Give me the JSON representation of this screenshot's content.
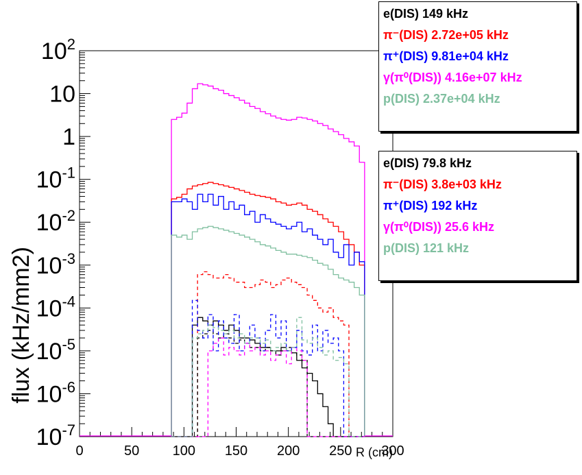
{
  "chart_data": {
    "type": "line",
    "title": "",
    "xlabel": "R (cm)",
    "ylabel": "flux (kHz/mm2)",
    "xlim": [
      0,
      300
    ],
    "ylim": [
      1e-07,
      100
    ],
    "log_y": true,
    "grid": false,
    "x_ticks": [
      "0",
      "50",
      "100",
      "150",
      "200",
      "250",
      "300"
    ],
    "y_ticks": [
      {
        "base": "10",
        "exp": "2"
      },
      {
        "base": "10",
        "exp": ""
      },
      {
        "base": "1",
        "exp": ""
      },
      {
        "base": "10",
        "exp": "-1"
      },
      {
        "base": "10",
        "exp": "-2"
      },
      {
        "base": "10",
        "exp": "-3"
      },
      {
        "base": "10",
        "exp": "-4"
      },
      {
        "base": "10",
        "exp": "-5"
      },
      {
        "base": "10",
        "exp": "-6"
      },
      {
        "base": "10",
        "exp": "-7"
      }
    ],
    "bin_edges": [
      88,
      93,
      98,
      103,
      108,
      113,
      118,
      123,
      128,
      133,
      138,
      143,
      148,
      153,
      158,
      163,
      168,
      173,
      178,
      183,
      188,
      193,
      198,
      203,
      208,
      213,
      218,
      223,
      228,
      233,
      238,
      243,
      248,
      253,
      258,
      263,
      268,
      273
    ],
    "series": [
      {
        "name": "γ(π⁰(DIS))",
        "color": "#ff00ff",
        "style": "solid",
        "values": [
          2.5,
          2.8,
          3.5,
          6.0,
          13.0,
          17.0,
          16.0,
          15.0,
          13.0,
          12.0,
          10.0,
          9.0,
          8.0,
          7.0,
          6.0,
          5.0,
          4.5,
          3.8,
          3.4,
          3.0,
          2.7,
          2.5,
          2.4,
          2.5,
          2.8,
          2.7,
          2.5,
          2.3,
          2.0,
          1.8,
          1.5,
          1.3,
          1.1,
          0.9,
          0.75,
          0.6,
          0.25
        ]
      },
      {
        "name": "π⁻(DIS)",
        "color": "#ff0000",
        "style": "solid",
        "values": [
          0.035,
          0.038,
          0.045,
          0.06,
          0.07,
          0.075,
          0.08,
          0.085,
          0.08,
          0.075,
          0.07,
          0.065,
          0.06,
          0.055,
          0.05,
          0.045,
          0.042,
          0.04,
          0.038,
          0.035,
          0.03,
          0.028,
          0.025,
          0.026,
          0.028,
          0.025,
          0.02,
          0.018,
          0.015,
          0.012,
          0.01,
          0.008,
          0.006,
          0.004,
          0.003,
          0.002,
          0.001
        ]
      },
      {
        "name": "π⁺(DIS)",
        "color": "#0000ff",
        "style": "solid",
        "values": [
          0.03,
          0.03,
          0.035,
          0.03,
          0.02,
          0.045,
          0.03,
          0.045,
          0.025,
          0.04,
          0.02,
          0.03,
          0.02,
          0.025,
          0.015,
          0.018,
          0.01,
          0.015,
          0.012,
          0.01,
          0.009,
          0.008,
          0.007,
          0.008,
          0.01,
          0.006,
          0.007,
          0.005,
          0.004,
          0.003,
          0.004,
          0.002,
          0.0015,
          0.003,
          0.001,
          0.002,
          0.0012
        ]
      },
      {
        "name": "p(DIS)",
        "color": "#7fbf9f",
        "style": "solid",
        "values": [
          0.005,
          0.0045,
          0.005,
          0.004,
          0.006,
          0.007,
          0.0075,
          0.008,
          0.0075,
          0.007,
          0.0065,
          0.006,
          0.0055,
          0.005,
          0.0045,
          0.004,
          0.0035,
          0.003,
          0.0028,
          0.0025,
          0.0022,
          0.002,
          0.0018,
          0.0018,
          0.0017,
          0.0016,
          0.0015,
          0.0013,
          0.0011,
          0.001,
          0.0008,
          0.0006,
          0.0005,
          0.00045,
          0.0004,
          0.0003,
          0.0002
        ]
      },
      {
        "name": "π⁻(DIS)",
        "color": "#ff0000",
        "style": "dashed",
        "values": [
          null,
          null,
          null,
          null,
          null,
          0.0006,
          0.0007,
          0.0006,
          0.0005,
          0.0005,
          0.0006,
          0.0005,
          0.0004,
          0.0004,
          0.0003,
          0.0003,
          0.00035,
          0.00045,
          0.0004,
          0.0003,
          0.00035,
          0.00045,
          0.0005,
          0.0004,
          0.00035,
          0.0003,
          0.0002,
          0.00015,
          0.0001,
          8e-05,
          0.0001,
          6e-05,
          5e-05,
          4e-05,
          null,
          null,
          null
        ]
      },
      {
        "name": "e(DIS)",
        "color": "#000000",
        "style": "solid",
        "values": [
          null,
          null,
          null,
          null,
          4e-05,
          6e-05,
          5e-05,
          4e-05,
          5e-05,
          4e-05,
          3e-05,
          4e-05,
          3e-05,
          2e-05,
          2e-05,
          1.8e-05,
          1.5e-05,
          1.2e-05,
          1.2e-05,
          1e-05,
          1e-05,
          1.2e-05,
          1e-05,
          9e-06,
          6e-06,
          4e-06,
          3e-06,
          2e-06,
          1e-06,
          5e-07,
          2e-07,
          null,
          null,
          null,
          null,
          null,
          null
        ]
      },
      {
        "name": "e(DIS)",
        "color": "#000000",
        "style": "dashed",
        "values": [
          null,
          null,
          null,
          null,
          null,
          2e-05,
          2.5e-05,
          3e-05,
          2.5e-05,
          2e-05,
          2.5e-05,
          2e-05,
          1.5e-05,
          1.8e-05,
          1.5e-05,
          1.2e-05,
          1.2e-05,
          1e-05,
          1.2e-05,
          1e-05,
          8e-06,
          1e-05,
          1.2e-05,
          9e-06,
          8e-06,
          6e-06,
          null,
          null,
          null,
          null,
          null,
          null,
          null,
          null,
          null,
          null,
          null
        ]
      },
      {
        "name": "π⁺(DIS)",
        "color": "#0000ff",
        "style": "dashed",
        "values": [
          null,
          null,
          null,
          null,
          0.00015,
          3e-05,
          2e-05,
          7e-05,
          1e-05,
          5e-05,
          2e-05,
          1.5e-05,
          7e-05,
          1e-05,
          1.5e-05,
          4e-05,
          2e-05,
          1e-05,
          3e-05,
          7e-05,
          2e-05,
          5e-05,
          1e-05,
          1.2e-05,
          3e-05,
          1e-05,
          8e-06,
          4e-05,
          1e-05,
          3e-05,
          1.5e-05,
          2e-05,
          1e-05,
          null,
          null,
          null,
          null
        ]
      },
      {
        "name": "γ(π⁰(DIS))",
        "color": "#ff00ff",
        "style": "dashed",
        "values": [
          null,
          null,
          null,
          null,
          null,
          null,
          null,
          1e-05,
          1.5e-05,
          2e-05,
          8e-06,
          1.2e-05,
          1e-05,
          8e-06,
          1.5e-05,
          1e-05,
          1.2e-05,
          8e-06,
          1e-05,
          6e-06,
          8e-06,
          1e-05,
          5e-06,
          1.2e-05,
          1e-05,
          6e-06,
          null,
          null,
          null,
          null,
          null,
          null,
          null,
          null,
          null,
          null,
          null
        ]
      },
      {
        "name": "p(DIS)",
        "color": "#7fbf9f",
        "style": "dashed",
        "values": [
          null,
          null,
          null,
          null,
          2e-05,
          2.5e-05,
          3e-05,
          4e-05,
          3.5e-05,
          3e-05,
          2.5e-05,
          3e-05,
          2e-05,
          2.5e-05,
          1.5e-05,
          2e-05,
          2e-05,
          1.5e-05,
          1.8e-05,
          1e-05,
          1.2e-05,
          1.5e-05,
          1e-05,
          1.2e-05,
          6e-05,
          1.8e-05,
          1.5e-05,
          2e-05,
          1.2e-05,
          8e-06,
          1e-05,
          6e-06,
          7e-06,
          5e-06,
          null,
          null,
          null
        ]
      }
    ]
  },
  "legend_top": {
    "entries": [
      {
        "label": "e(DIS)  149 kHz",
        "color": "#000000"
      },
      {
        "label": "π⁻(DIS)  2.72e+05 kHz",
        "color": "#ff0000"
      },
      {
        "label": "π⁺(DIS)  9.81e+04 kHz",
        "color": "#0000ff"
      },
      {
        "label": "γ(π⁰(DIS))  4.16e+07 kHz",
        "color": "#ff00ff"
      },
      {
        "label": "p(DIS)  2.37e+04 kHz",
        "color": "#7fbf9f"
      }
    ]
  },
  "legend_bottom": {
    "entries": [
      {
        "label": "e(DIS)  79.8 kHz",
        "color": "#000000"
      },
      {
        "label": "π⁻(DIS)  3.8e+03 kHz",
        "color": "#ff0000"
      },
      {
        "label": "π⁺(DIS)  192 kHz",
        "color": "#0000ff"
      },
      {
        "label": "γ(π⁰(DIS))  25.6 kHz",
        "color": "#ff00ff"
      },
      {
        "label": "p(DIS)  121 kHz",
        "color": "#7fbf9f"
      }
    ]
  }
}
